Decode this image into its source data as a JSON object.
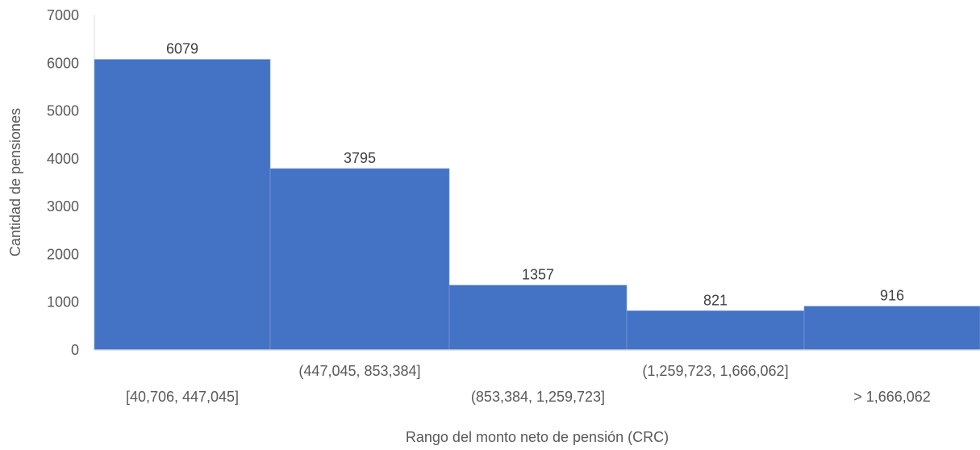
{
  "chart_data": {
    "type": "bar",
    "title": "",
    "xlabel": "Rango del monto neto de pensión (CRC)",
    "ylabel": "Cantidad de pensiones",
    "categories": [
      "[40,706, 447,045]",
      "(447,045, 853,384]",
      "(853,384, 1,259,723]",
      "(1,259,723, 1,666,062]",
      "> 1,666,062"
    ],
    "values": [
      6079,
      3795,
      1357,
      821,
      916
    ],
    "ylim": [
      0,
      7000
    ],
    "yticks": [
      0,
      1000,
      2000,
      3000,
      4000,
      5000,
      6000,
      7000
    ],
    "bar_color": "#4472C4",
    "grid": false,
    "legend": "none",
    "data_labels": true
  }
}
